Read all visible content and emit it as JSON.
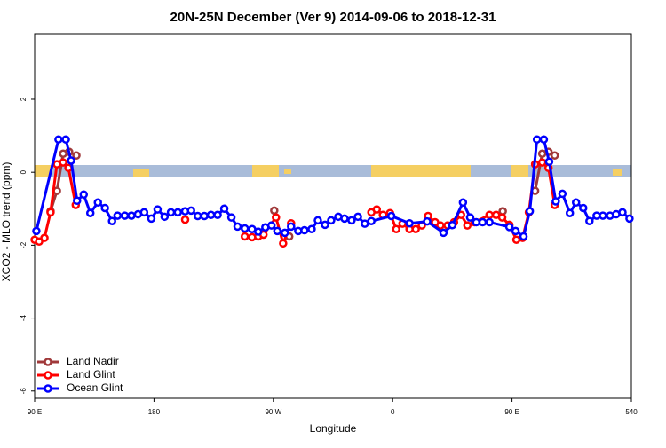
{
  "chart_data": {
    "type": "line",
    "title": "20N-25N December (Ver 9)   2014-09-06 to 2018-12-31",
    "x_label": "Longitude",
    "y_label": "XCO2 - MLO trend (ppm)",
    "xlim": [
      90,
      540
    ],
    "ylim": [
      -6.2,
      3.8
    ],
    "xticks": [
      {
        "value": 90,
        "label": "90 E"
      },
      180,
      {
        "value": 270,
        "label": "90 W"
      },
      {
        "value": 360,
        "label": "0"
      },
      {
        "value": 450,
        "label": "90 E"
      },
      540
    ],
    "yticks": [
      -6,
      -4,
      -2,
      0,
      2
    ],
    "legend": "bottom-left",
    "series": [
      {
        "name": "Land Nadir",
        "color": "#a0393a",
        "x": [
          102,
          106.8,
          111.5,
          116,
          121.5,
          200,
          270.7,
          276,
          282,
          360,
          443,
          455,
          467.4,
          472.8,
          477.5,
          482.2
        ],
        "values": [
          -1.07,
          -0.51,
          0.51,
          0.56,
          0.46,
          null,
          -1.05,
          null,
          -1.76,
          null,
          -1.07,
          null,
          -0.51,
          0.51,
          0.56,
          0.46
        ]
      },
      {
        "name": "Land Glint",
        "color": "#ff0000",
        "x": [
          90,
          93.4,
          97.4,
          102,
          106.8,
          111.5,
          115.5,
          121,
          160,
          203.5,
          225,
          248.5,
          254,
          258.6,
          262.6,
          272,
          277.4,
          283.4,
          310,
          343.9,
          348,
          352.6,
          358,
          362.7,
          367.4,
          372.7,
          377.4,
          382,
          386.7,
          392,
          396,
          401.4,
          406.3,
          411.6,
          416.3,
          421.7,
          433,
          438,
          442.6,
          448,
          453.3,
          458,
          462.7,
          467.4,
          472.8,
          477.5,
          482.2
        ],
        "values": [
          -1.85,
          -1.9,
          -1.8,
          -1.1,
          0.22,
          0.27,
          0.12,
          -0.9,
          null,
          -1.3,
          null,
          -1.76,
          -1.78,
          -1.76,
          -1.71,
          -1.24,
          -1.95,
          -1.4,
          null,
          -1.1,
          -1.02,
          -1.17,
          -1.12,
          -1.56,
          -1.41,
          -1.56,
          -1.56,
          -1.46,
          -1.2,
          -1.37,
          -1.46,
          -1.46,
          -1.37,
          -1.17,
          -1.46,
          -1.37,
          -1.17,
          -1.17,
          -1.24,
          -1.44,
          -1.85,
          -1.8,
          -1.1,
          0.22,
          0.27,
          0.12,
          -0.9
        ]
      },
      {
        "name": "Ocean Glint",
        "color": "#0000ff",
        "x": [
          91.3,
          108,
          113.5,
          117.5,
          122,
          127,
          132,
          137.7,
          143,
          148.4,
          152.5,
          158,
          163,
          168,
          172.6,
          178,
          182.7,
          188,
          192.8,
          198,
          203.5,
          208,
          213,
          218,
          223,
          228,
          233,
          238.4,
          243,
          248.5,
          254,
          258.6,
          264,
          268.6,
          273,
          278.7,
          283.4,
          288.8,
          293.5,
          298.9,
          303.6,
          309,
          313.6,
          319,
          323.7,
          329,
          333.8,
          339,
          343.9,
          359,
          372.7,
          386,
          398.3,
          405,
          413,
          418.4,
          423,
          427.8,
          433,
          448,
          452.7,
          458.7,
          463.4,
          468.8,
          474,
          478,
          483,
          488,
          493.6,
          498.3,
          503.7,
          508.4,
          513.8,
          518.5,
          523.9,
          528.6,
          533.3,
          538.6
        ],
        "values": [
          -1.61,
          0.9,
          0.9,
          0.32,
          -0.78,
          -0.61,
          -1.12,
          -0.83,
          -0.98,
          -1.34,
          -1.19,
          -1.19,
          -1.19,
          -1.15,
          -1.1,
          -1.27,
          -1.02,
          -1.22,
          -1.1,
          -1.1,
          -1.07,
          -1.05,
          -1.2,
          -1.2,
          -1.17,
          -1.17,
          -1.0,
          -1.24,
          -1.49,
          -1.54,
          -1.56,
          -1.63,
          -1.51,
          -1.46,
          -1.61,
          -1.66,
          -1.49,
          -1.61,
          -1.59,
          -1.56,
          -1.32,
          -1.44,
          -1.32,
          -1.22,
          -1.27,
          -1.32,
          -1.22,
          -1.41,
          -1.34,
          -1.2,
          -1.4,
          -1.35,
          -1.66,
          -1.45,
          -0.83,
          -1.24,
          -1.37,
          -1.37,
          -1.37,
          -1.5,
          -1.61,
          -1.76,
          -1.07,
          0.9,
          0.9,
          0.29,
          -0.8,
          -0.59,
          -1.12,
          -0.83,
          -0.98,
          -1.34,
          -1.19,
          -1.19,
          -1.19,
          -1.15,
          -1.1,
          -1.27
        ]
      }
    ]
  }
}
